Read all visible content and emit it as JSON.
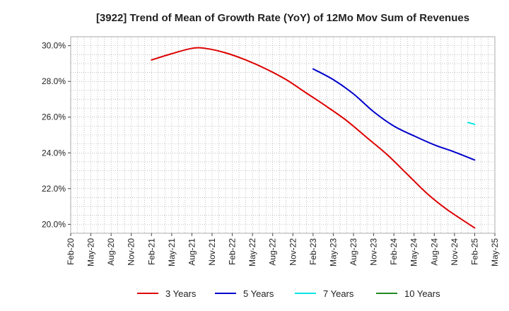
{
  "chart_data": {
    "type": "line",
    "title": "[3922]  Trend of Mean of Growth Rate (YoY) of 12Mo Mov Sum of Revenues",
    "xlabel": "",
    "ylabel": "",
    "ylim": [
      19.5,
      30.5
    ],
    "x_range": [
      "2020-02",
      "2025-05"
    ],
    "grid": true,
    "legend_position": "bottom",
    "y_ticks": [
      {
        "value": 20,
        "label": "20.0%"
      },
      {
        "value": 22,
        "label": "22.0%"
      },
      {
        "value": 24,
        "label": "24.0%"
      },
      {
        "value": 26,
        "label": "26.0%"
      },
      {
        "value": 28,
        "label": "28.0%"
      },
      {
        "value": 30,
        "label": "30.0%"
      }
    ],
    "x_ticks": [
      "Feb-20",
      "May-20",
      "Aug-20",
      "Nov-20",
      "Feb-21",
      "May-21",
      "Aug-21",
      "Nov-21",
      "Feb-22",
      "May-22",
      "Aug-22",
      "Nov-22",
      "Feb-23",
      "May-23",
      "Aug-23",
      "Nov-23",
      "Feb-24",
      "May-24",
      "Aug-24",
      "Nov-24",
      "Feb-25",
      "May-25"
    ],
    "series": [
      {
        "name": "3 Years",
        "color": "#dd0000",
        "points": [
          [
            "2021-02",
            29.2
          ],
          [
            "2021-05",
            29.55
          ],
          [
            "2021-08",
            29.85
          ],
          [
            "2021-10",
            29.85
          ],
          [
            "2022-01",
            29.6
          ],
          [
            "2022-04",
            29.2
          ],
          [
            "2022-07",
            28.7
          ],
          [
            "2022-10",
            28.1
          ],
          [
            "2023-01",
            27.35
          ],
          [
            "2023-04",
            26.6
          ],
          [
            "2023-07",
            25.8
          ],
          [
            "2023-10",
            24.85
          ],
          [
            "2024-01",
            23.9
          ],
          [
            "2024-04",
            22.8
          ],
          [
            "2024-07",
            21.7
          ],
          [
            "2024-10",
            20.8
          ],
          [
            "2025-02",
            19.8
          ]
        ]
      },
      {
        "name": "5 Years",
        "color": "#0000cc",
        "points": [
          [
            "2023-02",
            28.7
          ],
          [
            "2023-05",
            28.1
          ],
          [
            "2023-08",
            27.3
          ],
          [
            "2023-11",
            26.3
          ],
          [
            "2024-02",
            25.5
          ],
          [
            "2024-05",
            24.95
          ],
          [
            "2024-08",
            24.45
          ],
          [
            "2024-11",
            24.05
          ],
          [
            "2025-02",
            23.6
          ]
        ]
      },
      {
        "name": "7 Years",
        "color": "#00e5e5",
        "points": [
          [
            "2025-01",
            25.7
          ],
          [
            "2025-02",
            25.6
          ]
        ]
      },
      {
        "name": "10 Years",
        "color": "#228822",
        "points": []
      }
    ]
  }
}
